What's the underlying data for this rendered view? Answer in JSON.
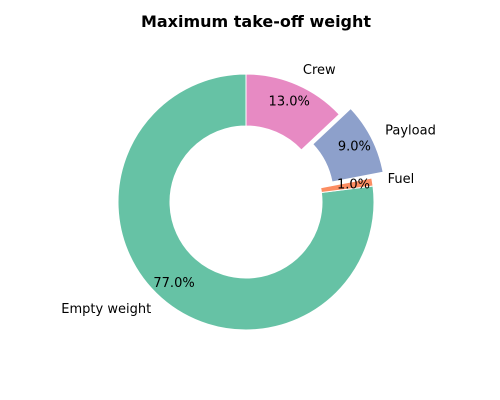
{
  "chart_data": {
    "type": "pie",
    "style": "donut",
    "title": "Maximum take-off weight",
    "start_angle_deg": 90,
    "direction": "counterclockwise",
    "slices": [
      {
        "label": "Empty weight",
        "value": 77.0,
        "pct_label": "77.0%",
        "color": "#66c2a5",
        "exploded": false
      },
      {
        "label": "Fuel",
        "value": 1.0,
        "pct_label": "1.0%",
        "color": "#fc8d62",
        "exploded": false
      },
      {
        "label": "Payload",
        "value": 9.0,
        "pct_label": "9.0%",
        "color": "#8da0cb",
        "exploded": true
      },
      {
        "label": "Crew",
        "value": 13.0,
        "pct_label": "13.0%",
        "color": "#e78ac3",
        "exploded": false
      }
    ]
  }
}
